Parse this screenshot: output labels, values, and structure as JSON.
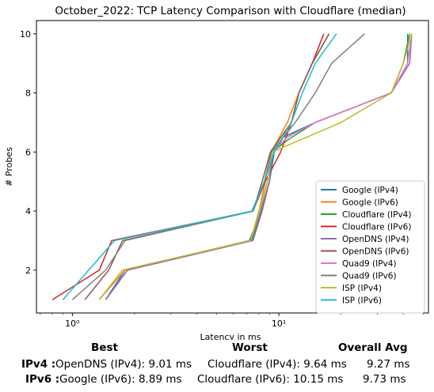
{
  "chart_data": {
    "type": "line",
    "title": "October_2022: TCP Latency Comparison with Cloudflare (median)",
    "xlabel": "Latency in ms",
    "ylabel": "# Probes",
    "x_scale": "log",
    "xlim": [
      0.67,
      53
    ],
    "ylim": [
      0.55,
      10.45
    ],
    "x_ticks": [
      {
        "value": 1,
        "label": "10⁰"
      },
      {
        "value": 10,
        "label": "10¹"
      }
    ],
    "y_ticks": [
      2,
      4,
      6,
      8,
      10
    ],
    "grid": false,
    "legend_position": "lower-right",
    "series": [
      {
        "name": "Google (IPv4)",
        "color": "#1f77b4",
        "points": [
          [
            1.45,
            1
          ],
          [
            1.8,
            2
          ],
          [
            7.2,
            3
          ],
          [
            8.2,
            4
          ],
          [
            9,
            5
          ],
          [
            9.5,
            6
          ],
          [
            10.5,
            6.5
          ],
          [
            15,
            7
          ],
          [
            35,
            8
          ],
          [
            42,
            9
          ],
          [
            42,
            10
          ]
        ]
      },
      {
        "name": "Google (IPv6)",
        "color": "#ff7f0e",
        "points": [
          [
            1.35,
            1
          ],
          [
            1.8,
            2
          ],
          [
            7.3,
            3
          ],
          [
            8,
            4
          ],
          [
            8.6,
            5
          ],
          [
            9.2,
            6
          ],
          [
            11,
            7
          ],
          [
            12.5,
            8
          ],
          [
            14.5,
            9
          ],
          [
            17.5,
            10
          ]
        ]
      },
      {
        "name": "Cloudflare (IPv4)",
        "color": "#2ca02c",
        "points": [
          [
            1.45,
            1
          ],
          [
            1.85,
            2
          ],
          [
            7.4,
            3
          ],
          [
            8.2,
            4
          ],
          [
            9,
            5
          ],
          [
            9.3,
            6
          ],
          [
            11,
            6.4
          ],
          [
            15,
            7
          ],
          [
            35,
            8
          ],
          [
            40,
            9
          ],
          [
            43,
            10
          ]
        ]
      },
      {
        "name": "Cloudflare (IPv6)",
        "color": "#d62728",
        "points": [
          [
            0.8,
            1
          ],
          [
            1.35,
            2
          ],
          [
            1.55,
            3
          ],
          [
            7.5,
            4
          ],
          [
            8.6,
            5
          ],
          [
            10.2,
            6
          ],
          [
            11.5,
            7
          ],
          [
            12.5,
            8
          ],
          [
            14.5,
            9
          ],
          [
            16.5,
            10
          ]
        ]
      },
      {
        "name": "OpenDNS (IPv4)",
        "color": "#9467bd",
        "points": [
          [
            1.45,
            1
          ],
          [
            1.85,
            2
          ],
          [
            7.5,
            3
          ],
          [
            8.3,
            4
          ],
          [
            9,
            5
          ],
          [
            9.3,
            6
          ],
          [
            11,
            6.5
          ],
          [
            15,
            7
          ],
          [
            35,
            8
          ],
          [
            43,
            9
          ],
          [
            44,
            10
          ]
        ]
      },
      {
        "name": "OpenDNS (IPv6)",
        "color": "#8c564b",
        "points": [
          [
            1.15,
            1
          ],
          [
            1.5,
            2
          ],
          [
            1.75,
            3
          ],
          [
            7.5,
            4
          ],
          [
            8.3,
            5
          ],
          [
            9.1,
            6
          ],
          [
            11.5,
            7
          ],
          [
            12.5,
            8
          ],
          [
            14.5,
            9
          ],
          [
            17.5,
            10
          ]
        ]
      },
      {
        "name": "Quad9 (IPv4)",
        "color": "#e377c2",
        "points": [
          [
            1.35,
            1
          ],
          [
            1.75,
            2
          ],
          [
            7.3,
            3
          ],
          [
            8.1,
            4
          ],
          [
            8.8,
            5
          ],
          [
            9.3,
            6
          ],
          [
            11,
            6.5
          ],
          [
            15,
            7
          ],
          [
            35,
            8
          ],
          [
            42,
            9
          ],
          [
            44,
            10
          ]
        ]
      },
      {
        "name": "Quad9 (IPv6)",
        "color": "#7f7f7f",
        "points": [
          [
            1.0,
            1
          ],
          [
            1.45,
            2
          ],
          [
            1.8,
            3
          ],
          [
            7.5,
            4
          ],
          [
            8.5,
            5
          ],
          [
            9.2,
            6
          ],
          [
            12,
            7
          ],
          [
            15,
            8
          ],
          [
            18,
            9
          ],
          [
            26,
            10
          ]
        ]
      },
      {
        "name": "ISP (IPv4)",
        "color": "#bcbd22",
        "points": [
          [
            1.35,
            1
          ],
          [
            1.75,
            2
          ],
          [
            7.3,
            3
          ],
          [
            8,
            4
          ],
          [
            8.8,
            5
          ],
          [
            9.3,
            6
          ],
          [
            20,
            7
          ],
          [
            35,
            8
          ],
          [
            40,
            9
          ],
          [
            44,
            10
          ]
        ]
      },
      {
        "name": "ISP (IPv6)",
        "color": "#17becf",
        "points": [
          [
            0.9,
            1
          ],
          [
            1.2,
            2
          ],
          [
            1.6,
            3
          ],
          [
            7.4,
            4
          ],
          [
            8.5,
            5
          ],
          [
            9.5,
            6
          ],
          [
            11.5,
            7
          ],
          [
            13,
            8
          ],
          [
            15,
            9
          ],
          [
            19,
            10
          ]
        ]
      }
    ]
  },
  "stats": {
    "headers": {
      "best": "Best",
      "worst": "Worst",
      "avg": "Overall Avg"
    },
    "rows": [
      {
        "label": "IPv4 :",
        "best": "OpenDNS (IPv4): 9.01 ms",
        "worst": "Cloudflare (IPv4): 9.64 ms",
        "avg": "9.27 ms"
      },
      {
        "label": "IPv6 :",
        "best": "Google (IPv6): 8.89 ms",
        "worst": "Cloudflare (IPv6): 10.15 ms",
        "avg": "9.73 ms"
      }
    ]
  }
}
